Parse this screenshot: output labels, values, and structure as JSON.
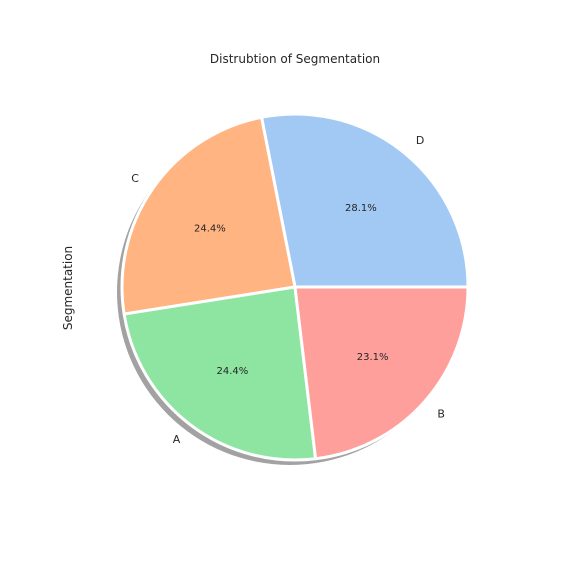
{
  "chart_data": {
    "type": "pie",
    "title": "Distrubtion of Segmentation",
    "ylabel": "Segmentation",
    "slices": [
      {
        "label": "D",
        "value": 28.1,
        "pct_label": "28.1%",
        "color": "#a1c9f4"
      },
      {
        "label": "C",
        "value": 24.4,
        "pct_label": "24.4%",
        "color": "#ffb482"
      },
      {
        "label": "A",
        "value": 24.4,
        "pct_label": "24.4%",
        "color": "#8de5a1"
      },
      {
        "label": "B",
        "value": 23.1,
        "pct_label": "23.1%",
        "color": "#ff9f9b"
      }
    ],
    "start_angle_deg": 0,
    "direction": "counterclockwise",
    "shadow": true,
    "edge_color": "#ffffff"
  }
}
